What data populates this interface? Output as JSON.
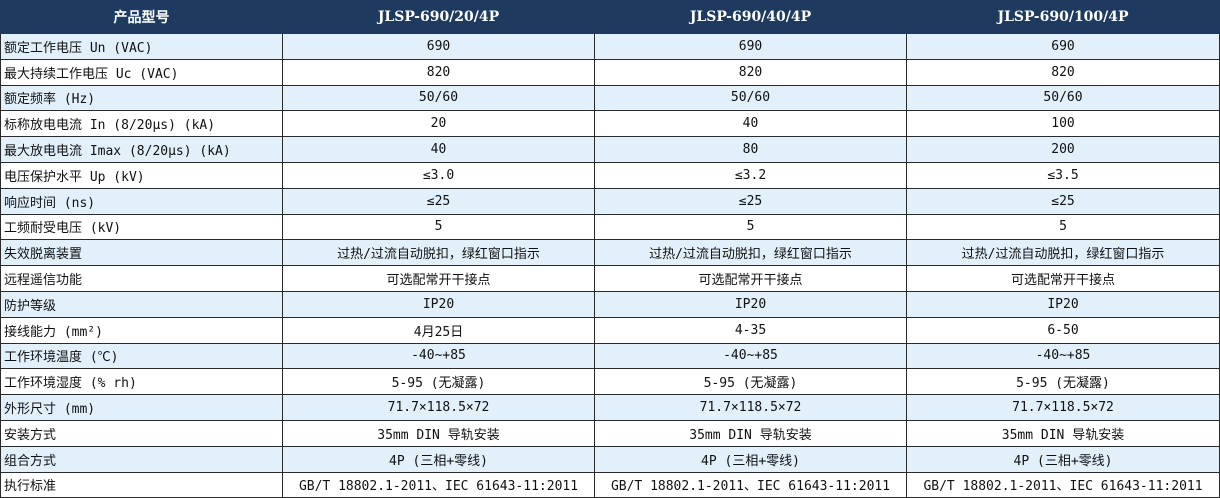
{
  "header": [
    "产品型号",
    "JLSP-690/20/4P",
    "JLSP-690/40/4P",
    "JLSP-690/100/4P"
  ],
  "colors": {
    "header_bg": "#1e3a5f",
    "alt_row_bg": "#e1f0fb"
  },
  "rows": [
    [
      "额定工作电压 Un (VAC)",
      "690",
      "690",
      "690"
    ],
    [
      "最大持续工作电压 Uc (VAC)",
      "820",
      "820",
      "820"
    ],
    [
      "额定频率 (Hz)",
      "50/60",
      "50/60",
      "50/60"
    ],
    [
      "标称放电电流 In (8/20μs) (kA)",
      "20",
      "40",
      "100"
    ],
    [
      "最大放电电流 Imax (8/20μs) (kA)",
      "40",
      "80",
      "200"
    ],
    [
      "电压保护水平 Up (kV)",
      "≤3.0",
      "≤3.2",
      "≤3.5"
    ],
    [
      "响应时间 (ns)",
      "≤25",
      "≤25",
      "≤25"
    ],
    [
      "工频耐受电压 (kV)",
      "5",
      "5",
      "5"
    ],
    [
      "失效脱离装置",
      "过热/过流自动脱扣，绿红窗口指示",
      "过热/过流自动脱扣，绿红窗口指示",
      "过热/过流自动脱扣，绿红窗口指示"
    ],
    [
      "远程遥信功能",
      "可选配常开干接点",
      "可选配常开干接点",
      "可选配常开干接点"
    ],
    [
      "防护等级",
      "IP20",
      "IP20",
      "IP20"
    ],
    [
      "接线能力 (mm²)",
      "4月25日",
      "4-35",
      "6-50"
    ],
    [
      "工作环境温度 (℃)",
      "-40~+85",
      "-40~+85",
      "-40~+85"
    ],
    [
      "工作环境湿度 (% rh)",
      "5-95 (无凝露)",
      "5-95 (无凝露)",
      "5-95 (无凝露)"
    ],
    [
      "外形尺寸 (mm)",
      "71.7×118.5×72",
      "71.7×118.5×72",
      "71.7×118.5×72"
    ],
    [
      "安装方式",
      "35mm DIN 导轨安装",
      "35mm DIN 导轨安装",
      "35mm DIN 导轨安装"
    ],
    [
      "组合方式",
      "4P (三相+零线)",
      "4P (三相+零线)",
      "4P (三相+零线)"
    ],
    [
      "执行标准",
      "GB/T 18802.1-2011、IEC 61643-11:2011",
      "GB/T 18802.1-2011、IEC 61643-11:2011",
      "GB/T 18802.1-2011、IEC 61643-11:2011"
    ]
  ]
}
